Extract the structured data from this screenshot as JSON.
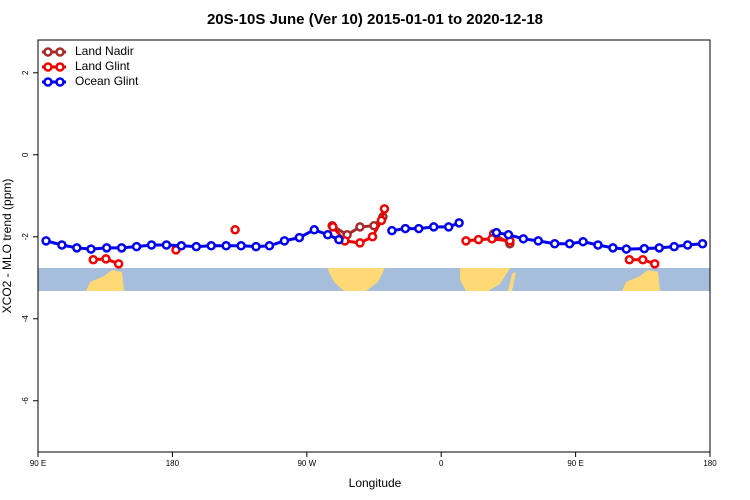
{
  "chart_data": {
    "type": "line",
    "title": "20S-10S June (Ver 10)   2015-01-01 to 2020-12-18",
    "x_label": "Longitude",
    "y_label": "XCO2 - MLO trend (ppm)",
    "xlim": [
      90,
      540
    ],
    "xticks": [
      {
        "value": 90,
        "label": "90 E"
      },
      180,
      {
        "value": 270,
        "label": "90 W"
      },
      {
        "value": 360,
        "label": "0"
      },
      {
        "value": 450,
        "label": "90 E"
      },
      {
        "value": 540,
        "label": "180"
      }
    ],
    "ylim": [
      -7.25,
      2.8
    ],
    "yticks": [
      -6,
      -4,
      -2,
      0,
      2
    ],
    "legend": "top-left",
    "series": [
      {
        "name": "Land Nadir",
        "color": "#a52a2a",
        "x": [
          287,
          297,
          305.6,
          315,
          321,
          null,
          395,
          406
        ],
        "values": [
          -1.73,
          -1.95,
          -1.76,
          -1.73,
          -1.51,
          null,
          -1.93,
          -2.17
        ]
      },
      {
        "name": "Land Glint",
        "color": "#ee0000",
        "x": [
          127,
          135.5,
          144,
          null,
          182.4,
          null,
          222,
          null,
          287.5,
          295.5,
          305.6,
          314,
          320,
          322,
          null,
          376.6,
          385,
          394,
          406,
          null,
          486,
          495,
          503
        ],
        "values": [
          -2.56,
          -2.54,
          -2.66,
          null,
          -2.32,
          null,
          -1.83,
          null,
          -1.76,
          -2.1,
          -2.15,
          -2.0,
          -1.6,
          -1.32,
          null,
          -2.1,
          -2.07,
          -2.05,
          -2.1,
          null,
          -2.56,
          -2.56,
          -2.66
        ]
      },
      {
        "name": "Ocean Glint",
        "color": "#0000ee",
        "x": [
          95.4,
          106,
          116,
          125.5,
          136,
          146,
          156,
          166,
          176,
          186,
          196,
          206,
          216,
          226,
          236,
          245,
          255,
          265,
          275,
          284,
          291.5,
          null,
          327,
          336,
          345,
          355,
          365,
          372,
          null,
          397,
          405,
          415,
          425,
          436,
          446,
          455,
          465,
          475,
          484,
          496,
          506,
          516,
          525,
          535
        ],
        "values": [
          -2.1,
          -2.2,
          -2.27,
          -2.3,
          -2.27,
          -2.27,
          -2.24,
          -2.2,
          -2.2,
          -2.22,
          -2.24,
          -2.22,
          -2.22,
          -2.22,
          -2.24,
          -2.22,
          -2.1,
          -2.02,
          -1.83,
          -1.95,
          -2.07,
          null,
          -1.85,
          -1.8,
          -1.8,
          -1.76,
          -1.76,
          -1.66,
          null,
          -1.9,
          -1.95,
          -2.05,
          -2.1,
          -2.17,
          -2.17,
          -2.12,
          -2.2,
          -2.27,
          -2.3,
          -2.29,
          -2.27,
          -2.24,
          -2.2,
          -2.17
        ]
      }
    ]
  }
}
